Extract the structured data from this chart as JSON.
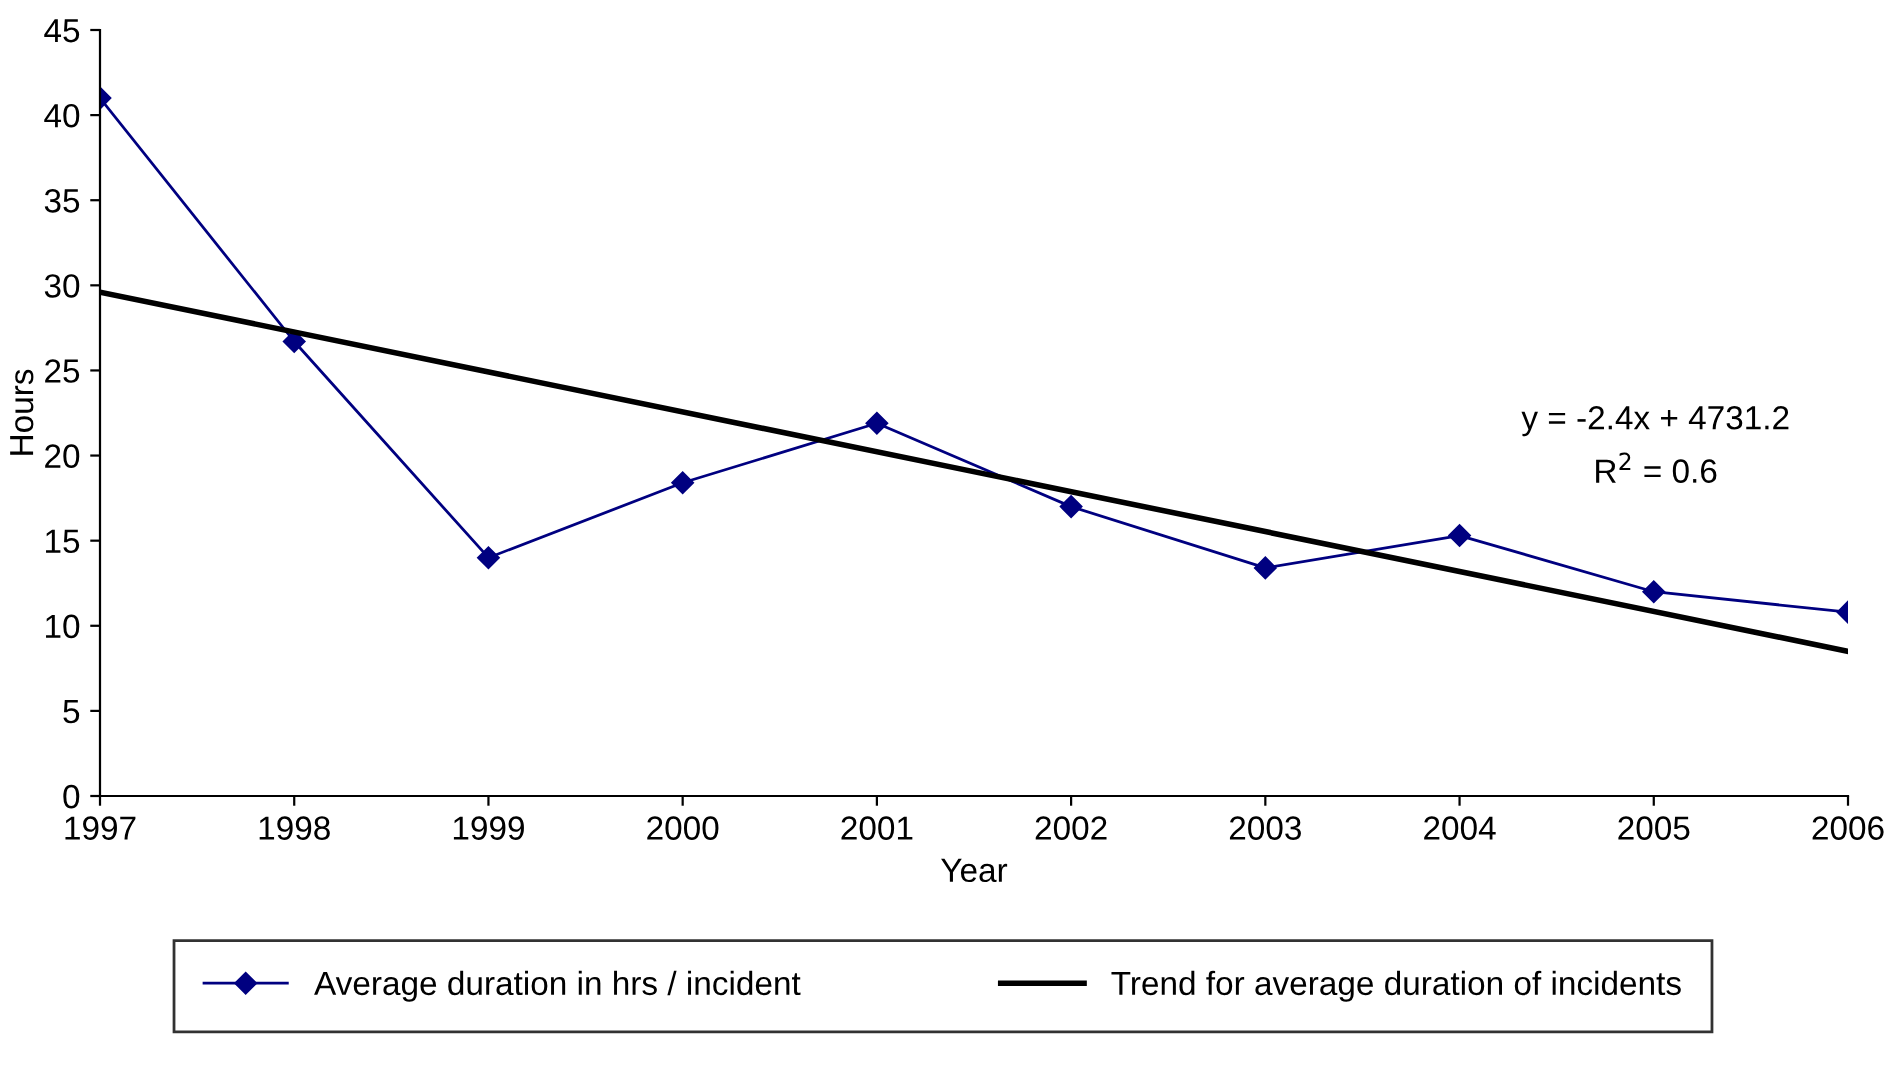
{
  "chart_data": {
    "type": "line",
    "xlabel": "Year",
    "ylabel": "Hours",
    "x": [
      1997,
      1998,
      1999,
      2000,
      2001,
      2002,
      2003,
      2004,
      2005,
      2006
    ],
    "series": [
      {
        "name": "Average duration in hrs / incident",
        "color": "#000080",
        "marker": "diamond",
        "values": [
          41.0,
          26.7,
          14.0,
          18.4,
          21.9,
          17.0,
          13.4,
          15.3,
          12.0,
          10.8
        ]
      },
      {
        "name": "Trend for average duration of incidents",
        "color": "#000000",
        "marker": "none",
        "x": [
          1997,
          2006
        ],
        "values": [
          29.6,
          8.5
        ]
      }
    ],
    "xlim": [
      1997,
      2006
    ],
    "xticks": [
      1997,
      1998,
      1999,
      2000,
      2001,
      2002,
      2003,
      2004,
      2005,
      2006
    ],
    "ylim": [
      0,
      45
    ],
    "yticks": [
      0,
      5,
      10,
      15,
      20,
      25,
      30,
      35,
      40,
      45
    ],
    "annotations": [
      "y = -2.4x + 4731.2",
      "R$^{2}$ = 0.6"
    ],
    "grid": false,
    "legend": "bottom",
    "line_style": "solid"
  }
}
